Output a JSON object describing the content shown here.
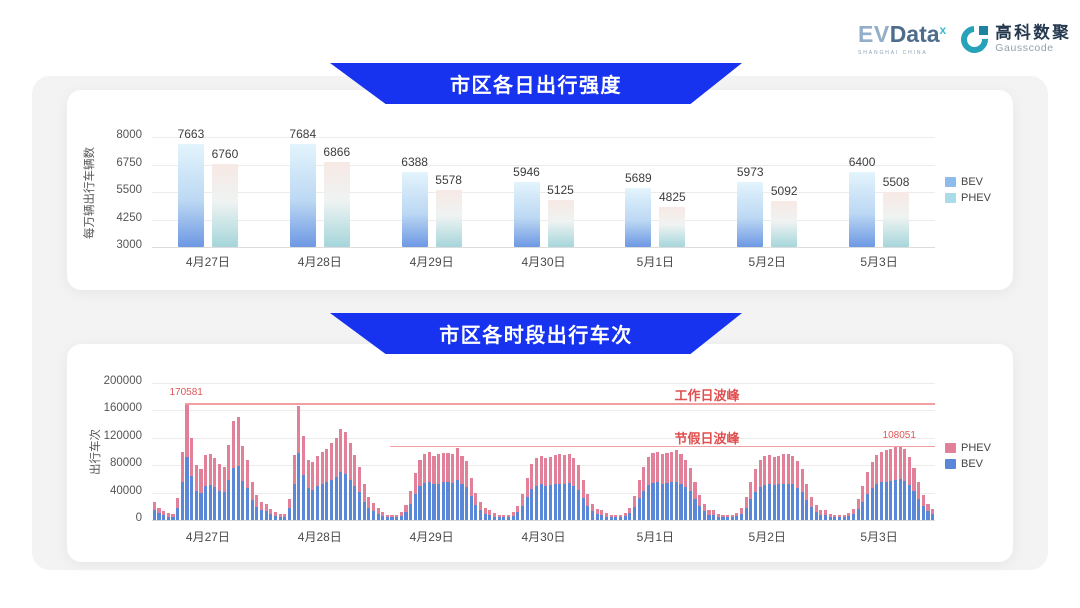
{
  "header": {
    "evdata": {
      "ev": "EV",
      "data": "Data",
      "sup": "x",
      "subtext": "SHANGHAI CHINA"
    },
    "gausscode": {
      "icon": "g-blocks-icon",
      "cn": "高科数聚",
      "en": "Gausscode"
    }
  },
  "colors": {
    "banner_blue": "#1733f0",
    "annotation_red": "#e05050",
    "annotation_line": "#f0a0a0",
    "bev_bar_top": "#e3f4fc",
    "bev_bar_bottom": "#6d98e3",
    "phev_bar_top": "#f7e9e5",
    "phev_bar_bottom": "#a5d6db",
    "legend1_bev": "#8cbbec",
    "legend1_phev": "#a9dbe8",
    "stack_bev": "#5b87d8",
    "stack_phev": "#e2809a"
  },
  "chart_data": [
    {
      "type": "bar",
      "title": "市区各日出行强度",
      "ylabel": "每万辆出行车辆数",
      "ylim": [
        3000,
        8000
      ],
      "yticks": [
        3000,
        4250,
        5500,
        6750,
        8000
      ],
      "grid": true,
      "legend_position": "right",
      "categories": [
        "4月27日",
        "4月28日",
        "4月29日",
        "4月30日",
        "5月1日",
        "5月2日",
        "5月3日"
      ],
      "series": [
        {
          "name": "BEV",
          "values": [
            7663,
            7684,
            6388,
            5946,
            5689,
            5973,
            6400
          ]
        },
        {
          "name": "PHEV",
          "values": [
            6760,
            6866,
            5578,
            5125,
            4825,
            5092,
            5508
          ]
        }
      ],
      "legend": [
        "BEV",
        "PHEV"
      ]
    },
    {
      "type": "stacked-bar",
      "title": "市区各时段出行车次",
      "ylabel": "出行车次",
      "ylim": [
        0,
        200000
      ],
      "yticks": [
        0,
        40000,
        80000,
        120000,
        160000,
        200000
      ],
      "grid": true,
      "legend_position": "right",
      "bars_per_category": 24,
      "categories": [
        "4月27日",
        "4月28日",
        "4月29日",
        "4月30日",
        "5月1日",
        "5月2日",
        "5月3日"
      ],
      "legend": [
        "PHEV",
        "BEV"
      ],
      "annotations": [
        {
          "name": "workday_peak",
          "label": "工作日波峰",
          "value": 170581,
          "value_label": "170581",
          "start_bar_index": 7,
          "peak_bar_index": 7
        },
        {
          "name": "holiday_peak",
          "label": "节假日波峰",
          "value": 108051,
          "value_label": "108051",
          "start_bar_index": 51,
          "peak_bar_index": 160
        }
      ],
      "series": [
        {
          "name": "BEV",
          "values": [
            14000,
            10000,
            7000,
            5000,
            5000,
            18000,
            55000,
            92000,
            64000,
            42000,
            40000,
            50000,
            51000,
            48000,
            43000,
            41000,
            58000,
            76000,
            79000,
            57000,
            46000,
            29000,
            19000,
            14000,
            13000,
            9000,
            6000,
            5000,
            5000,
            17000,
            52000,
            98000,
            66000,
            46000,
            44000,
            49000,
            52000,
            55000,
            59000,
            63000,
            70000,
            67000,
            59000,
            50000,
            41000,
            27000,
            18000,
            13000,
            9000,
            6000,
            4000,
            4000,
            4000,
            6000,
            12000,
            23000,
            38000,
            49000,
            54000,
            55000,
            52000,
            53000,
            55000,
            55000,
            54000,
            59000,
            52000,
            48000,
            35000,
            22000,
            14000,
            9000,
            8000,
            5000,
            4000,
            4000,
            4000,
            6000,
            11000,
            21000,
            34000,
            45000,
            50000,
            52000,
            50000,
            51000,
            53000,
            53000,
            53000,
            54000,
            50000,
            44000,
            32000,
            21000,
            13000,
            9000,
            8000,
            5000,
            4000,
            4000,
            4000,
            6000,
            10000,
            19000,
            32000,
            43000,
            51000,
            54000,
            55000,
            53000,
            54000,
            55000,
            56000,
            53000,
            48000,
            42000,
            30000,
            20000,
            13000,
            8000,
            8000,
            5000,
            4000,
            4000,
            4000,
            6000,
            9000,
            18000,
            30000,
            41000,
            48000,
            51000,
            52000,
            51000,
            52000,
            53000,
            53000,
            52000,
            47000,
            41000,
            29000,
            19000,
            12000,
            8000,
            8000,
            5000,
            4000,
            4000,
            4000,
            6000,
            9000,
            16000,
            27000,
            38000,
            47000,
            52000,
            55000,
            56000,
            57000,
            58000,
            60000,
            57000,
            51000,
            42000,
            30000,
            20000,
            13000,
            9000
          ]
        },
        {
          "name": "PHEV",
          "values": [
            12000,
            8000,
            6000,
            5000,
            4000,
            14000,
            45000,
            78581,
            56000,
            38000,
            35000,
            45000,
            45000,
            42000,
            39000,
            37000,
            52000,
            69000,
            71000,
            51000,
            42000,
            26000,
            17000,
            13000,
            11000,
            7000,
            6000,
            4000,
            4000,
            13000,
            43000,
            69000,
            56000,
            42000,
            41000,
            44000,
            47000,
            49000,
            53000,
            57000,
            63000,
            61000,
            53000,
            45000,
            37000,
            25000,
            16000,
            12000,
            8000,
            5000,
            4000,
            3000,
            3000,
            5000,
            10000,
            19000,
            30000,
            39000,
            42000,
            44000,
            41000,
            43000,
            43000,
            43000,
            43000,
            46000,
            42000,
            38000,
            27000,
            18000,
            12000,
            8000,
            7000,
            5000,
            4000,
            3000,
            3000,
            5000,
            9000,
            17000,
            28000,
            37000,
            40000,
            42000,
            40000,
            41000,
            42000,
            43000,
            42000,
            43000,
            40000,
            36000,
            26000,
            17000,
            11000,
            7000,
            6000,
            5000,
            4000,
            3000,
            3000,
            4000,
            8000,
            16000,
            26000,
            35000,
            41000,
            44000,
            45000,
            43000,
            44000,
            45000,
            46000,
            43000,
            40000,
            34000,
            25000,
            16000,
            10000,
            7000,
            6000,
            4000,
            3000,
            3000,
            3000,
            4000,
            8000,
            15000,
            25000,
            34000,
            40000,
            42000,
            43000,
            41000,
            42000,
            43000,
            44000,
            42000,
            39000,
            33000,
            23000,
            15000,
            10000,
            7000,
            6000,
            4000,
            3000,
            3000,
            3000,
            4000,
            7000,
            14000,
            23000,
            32000,
            38000,
            43000,
            45000,
            46000,
            47000,
            48000,
            48051,
            46000,
            41000,
            34000,
            25000,
            16000,
            11000,
            7000
          ]
        }
      ]
    }
  ]
}
